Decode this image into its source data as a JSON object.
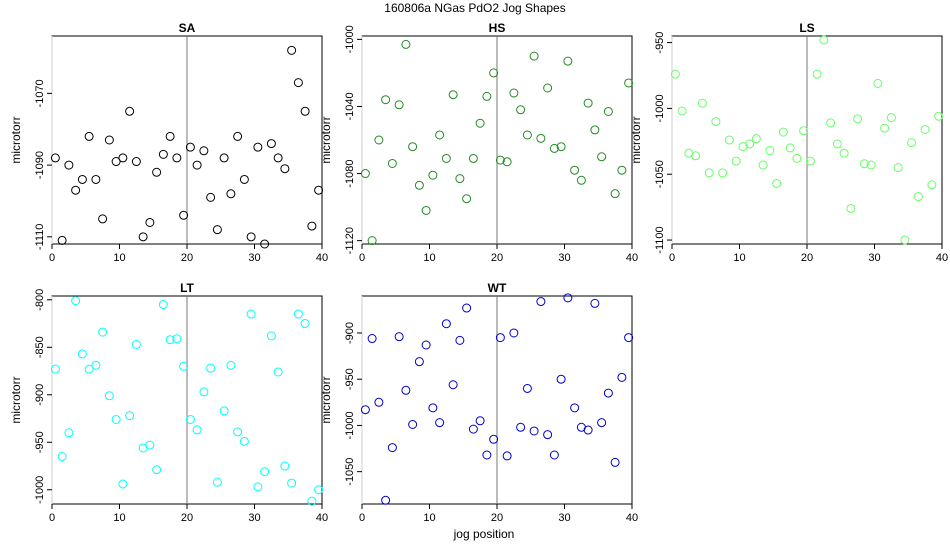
{
  "figure": {
    "title": "160806a   NGas PdO2 Jog Shapes",
    "xlabel": "jog position"
  },
  "chart_data": [
    {
      "type": "scatter",
      "title": "SA",
      "ylabel": "microtorr",
      "xlim": [
        0,
        40
      ],
      "ylim": [
        -1112,
        -1054
      ],
      "xticks": [
        0,
        10,
        20,
        30,
        40
      ],
      "yticks": [
        -1110,
        -1090,
        -1070
      ],
      "vline": 20,
      "color": "#000000",
      "x": [
        0.5,
        1.5,
        2.5,
        3.5,
        4.5,
        5.5,
        6.5,
        7.5,
        8.5,
        9.5,
        10.5,
        11.5,
        12.5,
        13.5,
        14.5,
        15.5,
        16.5,
        17.5,
        18.5,
        19.5,
        20.5,
        21.5,
        22.5,
        23.5,
        24.5,
        25.5,
        26.5,
        27.5,
        28.5,
        29.5,
        30.5,
        31.5,
        32.5,
        33.5,
        34.5,
        35.5,
        36.5,
        37.5,
        38.5,
        39.5
      ],
      "y": [
        -1088,
        -1111,
        -1090,
        -1097,
        -1094,
        -1082,
        -1094,
        -1105,
        -1083,
        -1089,
        -1088,
        -1075,
        -1089,
        -1110,
        -1106,
        -1092,
        -1087,
        -1082,
        -1088,
        -1104,
        -1085,
        -1090,
        -1086,
        -1099,
        -1108,
        -1088,
        -1098,
        -1082,
        -1094,
        -1110,
        -1085,
        -1112,
        -1084,
        -1088,
        -1091,
        -1058,
        -1067,
        -1075,
        -1107,
        -1097
      ]
    },
    {
      "type": "scatter",
      "title": "HS",
      "ylabel": "microtorr",
      "xlim": [
        0,
        40
      ],
      "ylim": [
        -1122,
        -998
      ],
      "xticks": [
        0,
        10,
        20,
        30,
        40
      ],
      "yticks": [
        -1120,
        -1080,
        -1040,
        -1000
      ],
      "vline": 20,
      "color": "#228B22",
      "x": [
        0.5,
        1.5,
        2.5,
        3.5,
        4.5,
        5.5,
        6.5,
        7.5,
        8.5,
        9.5,
        10.5,
        11.5,
        12.5,
        13.5,
        14.5,
        15.5,
        16.5,
        17.5,
        18.5,
        19.5,
        20.5,
        21.5,
        22.5,
        23.5,
        24.5,
        25.5,
        26.5,
        27.5,
        28.5,
        29.5,
        30.5,
        31.5,
        32.5,
        33.5,
        34.5,
        35.5,
        36.5,
        37.5,
        38.5,
        39.5
      ],
      "y": [
        -1080,
        -1120,
        -1060,
        -1036,
        -1074,
        -1039,
        -1003,
        -1064,
        -1087,
        -1102,
        -1081,
        -1057,
        -1071,
        -1033,
        -1083,
        -1095,
        -1071,
        -1050,
        -1034,
        -1020,
        -1072,
        -1073,
        -1032,
        -1042,
        -1057,
        -1010,
        -1059,
        -1029,
        -1065,
        -1064,
        -1013,
        -1078,
        -1084,
        -1038,
        -1054,
        -1070,
        -1043,
        -1092,
        -1078,
        -1026
      ]
    },
    {
      "type": "scatter",
      "title": "LS",
      "ylabel": "microtorr",
      "xlim": [
        0,
        40
      ],
      "ylim": [
        -1103,
        -945
      ],
      "xticks": [
        0,
        10,
        20,
        30,
        40
      ],
      "yticks": [
        -1100,
        -1050,
        -1000,
        -950
      ],
      "vline": 20,
      "color": "#66FF66",
      "x": [
        0.5,
        1.5,
        2.5,
        3.5,
        4.5,
        5.5,
        6.5,
        7.5,
        8.5,
        9.5,
        10.5,
        11.5,
        12.5,
        13.5,
        14.5,
        15.5,
        16.5,
        17.5,
        18.5,
        19.5,
        20.5,
        21.5,
        22.5,
        23.5,
        24.5,
        25.5,
        26.5,
        27.5,
        28.5,
        29.5,
        30.5,
        31.5,
        32.5,
        33.5,
        34.5,
        35.5,
        36.5,
        37.5,
        38.5,
        39.5
      ],
      "y": [
        -974,
        -1002,
        -1034,
        -1036,
        -996,
        -1049,
        -1010,
        -1049,
        -1024,
        -1040,
        -1029,
        -1027,
        -1023,
        -1043,
        -1032,
        -1057,
        -1018,
        -1030,
        -1038,
        -1017,
        -1040,
        -974,
        -948,
        -1011,
        -1027,
        -1034,
        -1076,
        -1008,
        -1042,
        -1043,
        -981,
        -1015,
        -1007,
        -1045,
        -1100,
        -1026,
        -1067,
        -1016,
        -1058,
        -1006
      ]
    },
    {
      "type": "scatter",
      "title": "LT",
      "ylabel": "microtorr",
      "xlim": [
        0,
        40
      ],
      "ylim": [
        -1015,
        -796
      ],
      "xticks": [
        0,
        10,
        20,
        30,
        40
      ],
      "yticks": [
        -1000,
        -950,
        -900,
        -850,
        -800
      ],
      "vline": 20,
      "color": "#00FFFF",
      "x": [
        0.5,
        1.5,
        2.5,
        3.5,
        4.5,
        5.5,
        6.5,
        7.5,
        8.5,
        9.5,
        10.5,
        11.5,
        12.5,
        13.5,
        14.5,
        15.5,
        16.5,
        17.5,
        18.5,
        19.5,
        20.5,
        21.5,
        22.5,
        23.5,
        24.5,
        25.5,
        26.5,
        27.5,
        28.5,
        29.5,
        30.5,
        31.5,
        32.5,
        33.5,
        34.5,
        35.5,
        36.5,
        37.5,
        38.5,
        39.5
      ],
      "y": [
        -873,
        -965,
        -940,
        -801,
        -857,
        -873,
        -869,
        -834,
        -901,
        -926,
        -994,
        -922,
        -847,
        -956,
        -953,
        -979,
        -805,
        -842,
        -841,
        -870,
        -926,
        -937,
        -897,
        -872,
        -992,
        -917,
        -869,
        -939,
        -949,
        -815,
        -997,
        -981,
        -838,
        -876,
        -975,
        -993,
        -815,
        -825,
        -1012,
        -1000
      ]
    },
    {
      "type": "scatter",
      "title": "WT",
      "ylabel": "microtorr",
      "xlim": [
        0,
        40
      ],
      "ylim": [
        -1085,
        -860
      ],
      "xticks": [
        0,
        10,
        20,
        30,
        40
      ],
      "yticks": [
        -1050,
        -1000,
        -950,
        -900
      ],
      "vline": 20,
      "color": "#0000CD",
      "x": [
        0.5,
        1.5,
        2.5,
        3.5,
        4.5,
        5.5,
        6.5,
        7.5,
        8.5,
        9.5,
        10.5,
        11.5,
        12.5,
        13.5,
        14.5,
        15.5,
        16.5,
        17.5,
        18.5,
        19.5,
        20.5,
        21.5,
        22.5,
        23.5,
        24.5,
        25.5,
        26.5,
        27.5,
        28.5,
        29.5,
        30.5,
        31.5,
        32.5,
        33.5,
        34.5,
        35.5,
        36.5,
        37.5,
        38.5,
        39.5
      ],
      "y": [
        -983,
        -906,
        -975,
        -1081,
        -1024,
        -904,
        -962,
        -999,
        -931,
        -913,
        -981,
        -997,
        -890,
        -956,
        -908,
        -873,
        -1004,
        -995,
        -1032,
        -1015,
        -905,
        -1033,
        -900,
        -1002,
        -960,
        -1006,
        -866,
        -1010,
        -1032,
        -950,
        -862,
        -981,
        -1002,
        -1005,
        -868,
        -997,
        -965,
        -1040,
        -948,
        -905
      ]
    }
  ]
}
